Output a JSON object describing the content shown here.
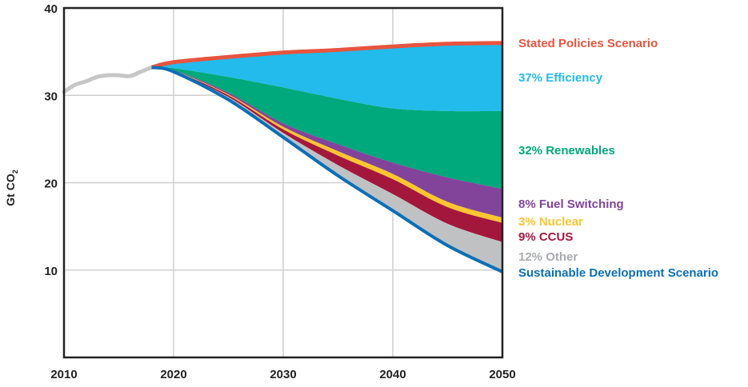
{
  "chart_data": {
    "type": "area",
    "title": "",
    "xlabel": "",
    "ylabel": "Gt CO",
    "ylabel_subscript": "2",
    "xlim": [
      2010,
      2050
    ],
    "ylim": [
      0,
      40
    ],
    "xticks": [
      "2010",
      "2020",
      "2030",
      "2040",
      "2050"
    ],
    "xtick_values": [
      2010,
      2020,
      2030,
      2040,
      2050
    ],
    "yticks": [
      "10",
      "20",
      "30",
      "40"
    ],
    "ytick_values": [
      10,
      20,
      30,
      40
    ],
    "grid": true,
    "historical": {
      "x": [
        2010,
        2011,
        2012,
        2013,
        2014,
        2015,
        2016,
        2017,
        2018
      ],
      "y": [
        30.4,
        31.2,
        31.6,
        32.1,
        32.3,
        32.3,
        32.2,
        32.7,
        33.2
      ],
      "color": "#c6c6c6"
    },
    "x": [
      2018,
      2020,
      2025,
      2030,
      2035,
      2040,
      2045,
      2050
    ],
    "boundaries": {
      "stated_policies": [
        33.2,
        33.8,
        34.4,
        34.9,
        35.2,
        35.6,
        35.9,
        36.0
      ],
      "efficiency_bottom": [
        33.2,
        33.1,
        32.1,
        30.9,
        29.6,
        28.5,
        28.2,
        28.2
      ],
      "renewables_bottom": [
        33.2,
        32.9,
        30.3,
        26.8,
        24.4,
        22.3,
        20.6,
        19.3
      ],
      "fuel_switching_bottom": [
        33.2,
        32.85,
        30.1,
        26.4,
        23.6,
        21.0,
        17.8,
        16.0
      ],
      "nuclear_bottom": [
        33.2,
        32.8,
        30.0,
        26.1,
        23.1,
        20.4,
        17.2,
        15.4
      ],
      "ccus_bottom": [
        33.2,
        32.75,
        29.8,
        25.7,
        22.0,
        18.7,
        15.3,
        13.2
      ],
      "sustainable_development": [
        33.2,
        32.7,
        29.5,
        25.2,
        20.8,
        16.8,
        12.8,
        9.8
      ]
    },
    "series": [
      {
        "name": "Stated Policies Scenario",
        "color": "#e8543f",
        "kind": "line"
      },
      {
        "name": "37% Efficiency",
        "color": "#23bbec",
        "kind": "band",
        "top": "stated_policies",
        "bottom": "efficiency_bottom"
      },
      {
        "name": "32% Renewables",
        "color": "#00a97b",
        "kind": "band",
        "top": "efficiency_bottom",
        "bottom": "renewables_bottom"
      },
      {
        "name": "8% Fuel Switching",
        "color": "#82449b",
        "kind": "band",
        "top": "renewables_bottom",
        "bottom": "fuel_switching_bottom"
      },
      {
        "name": "3% Nuclear",
        "color": "#fcc530",
        "kind": "band",
        "top": "fuel_switching_bottom",
        "bottom": "nuclear_bottom"
      },
      {
        "name": "9% CCUS",
        "color": "#a3173d",
        "kind": "band",
        "top": "nuclear_bottom",
        "bottom": "ccus_bottom"
      },
      {
        "name": "12% Other",
        "color": "#a9abae",
        "fill": "#c0c1c3",
        "kind": "band",
        "top": "ccus_bottom",
        "bottom": "sustainable_development"
      },
      {
        "name": "Sustainable Development Scenario",
        "color": "#0b6fb8",
        "kind": "line"
      }
    ],
    "legend_placement": "right"
  }
}
